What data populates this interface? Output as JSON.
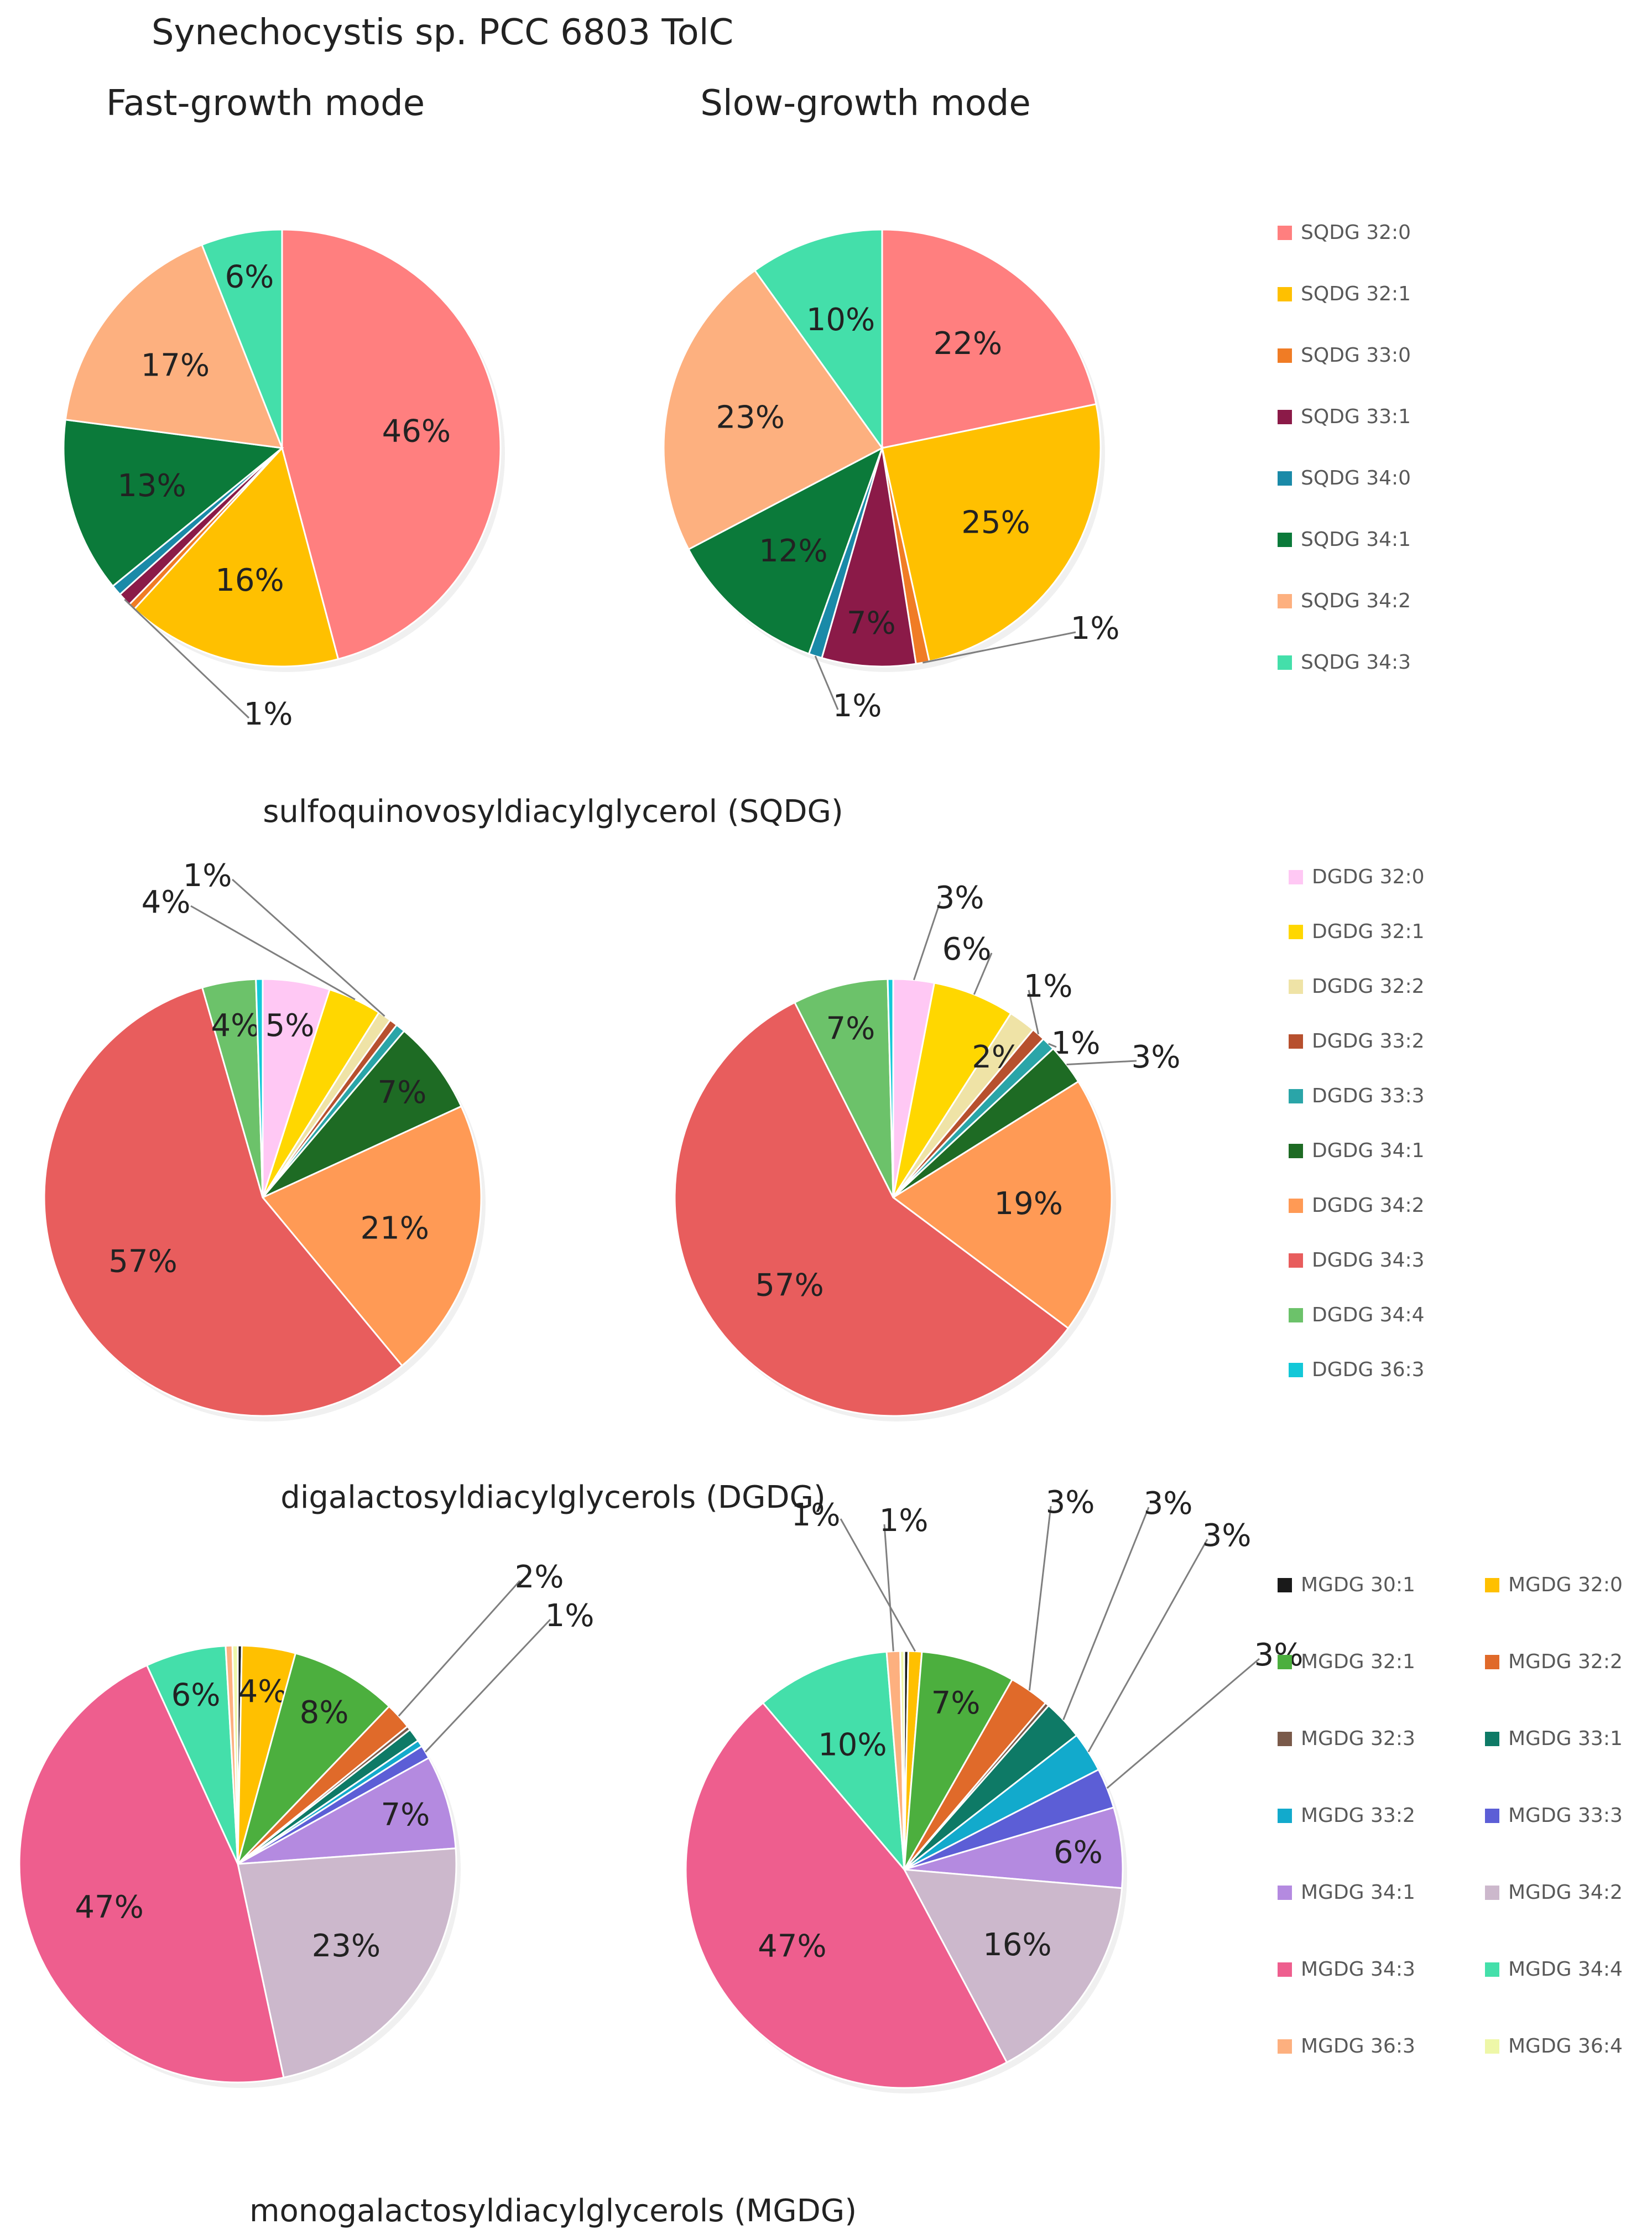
{
  "title": "Synechocystis sp. PCC 6803 TolC",
  "column_titles": {
    "fast": "Fast-growth mode",
    "slow": "Slow-growth mode"
  },
  "chart_data": [
    {
      "type": "pie",
      "group": "SQDG",
      "title": "sulfoquinovosyldiacylglycerol (SQDG)",
      "mode": "Fast-growth mode",
      "categories": [
        "SQDG 32:0",
        "SQDG 32:1",
        "SQDG 33:0",
        "SQDG 33:1",
        "SQDG 34:0",
        "SQDG 34:1",
        "SQDG 34:2",
        "SQDG 34:3"
      ],
      "colors": [
        "#FF7F7F",
        "#FFC000",
        "#F07C25",
        "#8B1A48",
        "#1A8AA8",
        "#0B7A3A",
        "#FDB07F",
        "#44DFAA"
      ],
      "values": [
        46,
        16,
        0.5,
        1,
        0.8,
        13,
        17,
        6
      ],
      "labels": [
        "46%",
        "16%",
        "",
        "1%",
        "",
        "13%",
        "17%",
        "6%"
      ]
    },
    {
      "type": "pie",
      "group": "SQDG",
      "title": "sulfoquinovosyldiacylglycerol (SQDG)",
      "mode": "Slow-growth mode",
      "categories": [
        "SQDG 32:0",
        "SQDG 32:1",
        "SQDG 33:0",
        "SQDG 33:1",
        "SQDG 34:0",
        "SQDG 34:1",
        "SQDG 34:2",
        "SQDG 34:3"
      ],
      "colors": [
        "#FF7F7F",
        "#FFC000",
        "#F07C25",
        "#8B1A48",
        "#1A8AA8",
        "#0B7A3A",
        "#FDB07F",
        "#44DFAA"
      ],
      "values": [
        22,
        25,
        1,
        7,
        1,
        12,
        23,
        10
      ],
      "labels": [
        "22%",
        "25%",
        "1%",
        "7%",
        "1%",
        "12%",
        "23%",
        "10%"
      ]
    },
    {
      "type": "pie",
      "group": "DGDG",
      "title": "digalactosyldiacylglycerols (DGDG)",
      "mode": "Fast-growth mode",
      "categories": [
        "DGDG 32:0",
        "DGDG 32:1",
        "DGDG 32:2",
        "DGDG 33:2",
        "DGDG 33:3",
        "DGDG 34:1",
        "DGDG 34:2",
        "DGDG 34:3",
        "DGDG 34:4",
        "DGDG 36:3"
      ],
      "colors": [
        "#FFC8F4",
        "#FFD700",
        "#EFE3A6",
        "#B7502E",
        "#2AA5A8",
        "#1E6B24",
        "#FF9A55",
        "#E85D5D",
        "#6CC26A",
        "#13C8D8"
      ],
      "values": [
        5,
        4,
        1,
        0.6,
        0.7,
        7,
        21,
        57,
        4,
        0.5
      ],
      "labels": [
        "5%",
        "4%",
        "1%",
        "",
        "",
        "7%",
        "21%",
        "57%",
        "4%",
        ""
      ]
    },
    {
      "type": "pie",
      "group": "DGDG",
      "title": "digalactosyldiacylglycerols (DGDG)",
      "mode": "Slow-growth mode",
      "categories": [
        "DGDG 32:0",
        "DGDG 32:1",
        "DGDG 32:2",
        "DGDG 33:2",
        "DGDG 33:3",
        "DGDG 34:1",
        "DGDG 34:2",
        "DGDG 34:3",
        "DGDG 34:4",
        "DGDG 36:3"
      ],
      "colors": [
        "#FFC8F4",
        "#FFD700",
        "#EFE3A6",
        "#B7502E",
        "#2AA5A8",
        "#1E6B24",
        "#FF9A55",
        "#E85D5D",
        "#6CC26A",
        "#13C8D8"
      ],
      "values": [
        3,
        6,
        2,
        1,
        1,
        3,
        19,
        57,
        7,
        0.4
      ],
      "labels": [
        "3%",
        "6%",
        "2%",
        "1%",
        "1%",
        "3%",
        "19%",
        "57%",
        "7%",
        ""
      ]
    },
    {
      "type": "pie",
      "group": "MGDG",
      "title": "monogalactosyldiacylglycerols (MGDG)",
      "mode": "Fast-growth mode",
      "categories": [
        "MGDG 30:1",
        "MGDG 32:0",
        "MGDG 32:1",
        "MGDG 32:2",
        "MGDG 32:3",
        "MGDG 33:1",
        "MGDG 33:2",
        "MGDG 33:3",
        "MGDG 34:1",
        "MGDG 34:2",
        "MGDG 34:3",
        "MGDG 34:4",
        "MGDG 36:3",
        "MGDG 36:4"
      ],
      "colors": [
        "#1A1A1A",
        "#FFC000",
        "#4CAF3E",
        "#E06A2A",
        "#7A5A4A",
        "#0E7A66",
        "#12AACC",
        "#5C5ED6",
        "#B48AE0",
        "#CCB8CC",
        "#EE5E8E",
        "#44DFAA",
        "#FDB07F",
        "#EEF7A8"
      ],
      "values": [
        0.3,
        4,
        8,
        2,
        0.3,
        1,
        0.5,
        1,
        7,
        23,
        47,
        6,
        0.5,
        0.4
      ],
      "labels": [
        "",
        "4%",
        "8%",
        "2%",
        "",
        "",
        "",
        "1%",
        "7%",
        "23%",
        "47%",
        "6%",
        "",
        ""
      ]
    },
    {
      "type": "pie",
      "group": "MGDG",
      "title": "monogalactosyldiacylglycerols (MGDG)",
      "mode": "Slow-growth mode",
      "categories": [
        "MGDG 30:1",
        "MGDG 32:0",
        "MGDG 32:1",
        "MGDG 32:2",
        "MGDG 32:3",
        "MGDG 33:1",
        "MGDG 33:2",
        "MGDG 33:3",
        "MGDG 34:1",
        "MGDG 34:2",
        "MGDG 34:3",
        "MGDG 34:4",
        "MGDG 36:3",
        "MGDG 36:4"
      ],
      "colors": [
        "#1A1A1A",
        "#FFC000",
        "#4CAF3E",
        "#E06A2A",
        "#7A5A4A",
        "#0E7A66",
        "#12AACC",
        "#5C5ED6",
        "#B48AE0",
        "#CCB8CC",
        "#EE5E8E",
        "#44DFAA",
        "#FDB07F",
        "#EEF7A8"
      ],
      "values": [
        0.3,
        1,
        7,
        3,
        0.3,
        3,
        3,
        3,
        6,
        16,
        47,
        10,
        1,
        0.3
      ],
      "labels": [
        "",
        "1%",
        "7%",
        "3%",
        "",
        "3%",
        "3%",
        "3%",
        "6%",
        "16%",
        "47%",
        "10%",
        "1%",
        ""
      ]
    }
  ],
  "legends": {
    "SQDG": [
      "SQDG 32:0",
      "SQDG 32:1",
      "SQDG 33:0",
      "SQDG 33:1",
      "SQDG 34:0",
      "SQDG 34:1",
      "SQDG 34:2",
      "SQDG 34:3"
    ],
    "DGDG": [
      "DGDG 32:0",
      "DGDG 32:1",
      "DGDG 32:2",
      "DGDG 33:2",
      "DGDG 33:3",
      "DGDG 34:1",
      "DGDG 34:2",
      "DGDG 34:3",
      "DGDG 34:4",
      "DGDG 36:3"
    ],
    "MGDG": [
      "MGDG 30:1",
      "MGDG 32:0",
      "MGDG 32:1",
      "MGDG 32:2",
      "MGDG 32:3",
      "MGDG 33:1",
      "MGDG 33:2",
      "MGDG 33:3",
      "MGDG 34:1",
      "MGDG 34:2",
      "MGDG 34:3",
      "MGDG 34:4",
      "MGDG 36:3",
      "MGDG 36:4"
    ]
  }
}
